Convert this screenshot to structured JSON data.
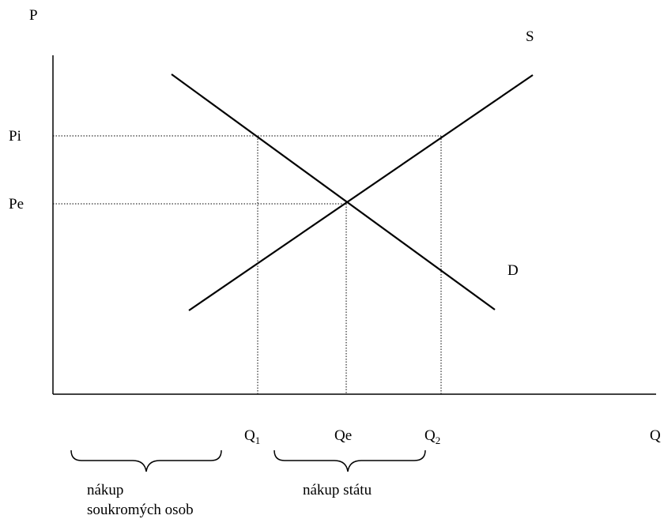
{
  "labels": {
    "price_axis": "P",
    "quantity_axis": "Q",
    "supply": "S",
    "demand": "D",
    "price_intervention": "Pi",
    "price_equilibrium": "Pe",
    "q1_main": "Q",
    "q1_sub": "1",
    "qe": "Qe",
    "q2_main": "Q",
    "q2_sub": "2"
  },
  "braces": {
    "private_purchase_line1": "nákup",
    "private_purchase_line2": "soukromých osob",
    "state_purchase": "nákup státu"
  }
}
